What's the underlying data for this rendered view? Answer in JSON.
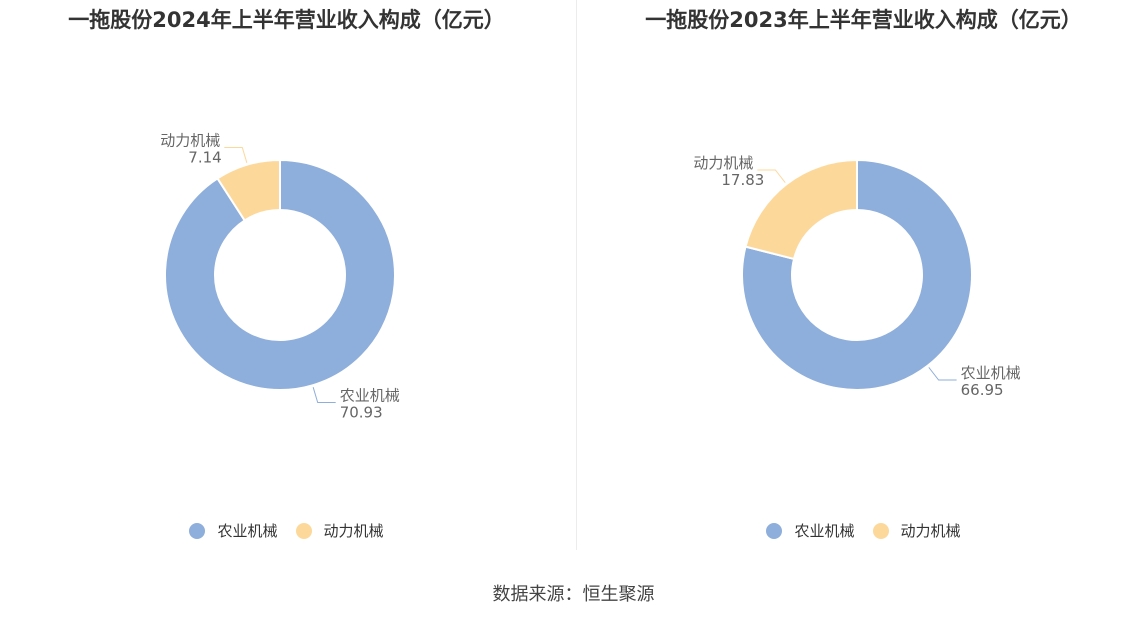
{
  "colors": {
    "agri": "#8eaedb",
    "power": "#fdd89b"
  },
  "chart_data": [
    {
      "type": "pie",
      "title": "一拖股份2024年上半年营业收入构成（亿元）",
      "slices": [
        {
          "name": "农业机械",
          "value": 70.93,
          "value_label": "70.93"
        },
        {
          "name": "动力机械",
          "value": 7.14,
          "value_label": "7.14"
        }
      ],
      "legend": [
        "农业机械",
        "动力机械"
      ]
    },
    {
      "type": "pie",
      "title": "一拖股份2023年上半年营业收入构成（亿元）",
      "slices": [
        {
          "name": "农业机械",
          "value": 66.95,
          "value_label": "66.95"
        },
        {
          "name": "动力机械",
          "value": 17.83,
          "value_label": "17.83"
        }
      ],
      "legend": [
        "农业机械",
        "动力机械"
      ]
    }
  ],
  "footer": {
    "source": "数据来源：恒生聚源"
  }
}
